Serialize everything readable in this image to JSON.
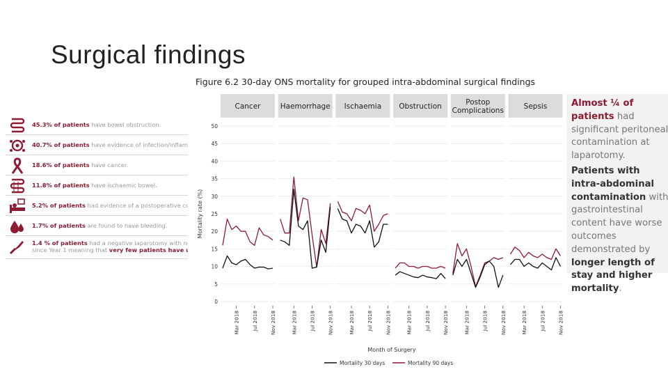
{
  "slide": {
    "title": "Surgical findings"
  },
  "figure": {
    "title": "Figure 6.2  30-day ONS mortality for grouped intra-abdominal surgical findings"
  },
  "left_list": [
    {
      "icon": "bowel-obstruction-icon",
      "bold": "45.3% of patients",
      "rest": " have bowel obstruction."
    },
    {
      "icon": "infection-icon",
      "bold": "40.7% of patients",
      "rest": " have evidence of infection/inflammatio"
    },
    {
      "icon": "cancer-ribbon-icon",
      "bold": "18.6% of patients",
      "rest": " have cancer."
    },
    {
      "icon": "ischaemic-bowel-icon",
      "bold": "11.8% of patients",
      "rest": " have ischaemic bowel."
    },
    {
      "icon": "postoperative-bed-icon",
      "bold": "5.2% of patients",
      "rest": " had evidence of a postoperative complic"
    },
    {
      "icon": "blood-drops-icon",
      "bold": "1.7% of patients",
      "rest": " are found to have bleeding."
    },
    {
      "icon": "scalpel-icon",
      "bold": "1.4 % of patients",
      "rest": " had a negative laparotomy with normal i",
      "line2_pre": "since Year 1 meaning that ",
      "line2_bold": "very few patients have unnecess"
    }
  ],
  "right_box": {
    "p1_red": "Almost ¼ of patients",
    "p1_rest": "had significant peritoneal contamination at laparotomy.",
    "p2_b1": "Patients with intra-abdominal contamination",
    "p2_mid": " with gastrointestinal content have worse outcomes demonstrated by ",
    "p2_b2": "longer length of stay and higher mortality",
    "p2_end": "."
  },
  "chart_data": {
    "type": "line",
    "title": "Figure 6.2  30-day ONS mortality for grouped intra-abdominal surgical findings",
    "xlabel": "Month of Surgery",
    "ylabel": "Mortality rate (%)",
    "ylim": [
      0,
      50
    ],
    "yticks": [
      "0",
      "5",
      "10",
      "15",
      "20",
      "25",
      "30",
      "35",
      "40",
      "45",
      "50"
    ],
    "xticks": [
      "Mar 2018",
      "Jul 2018",
      "Nov 2018"
    ],
    "x": [
      "Dec 2017",
      "Jan 2018",
      "Feb 2018",
      "Mar 2018",
      "Apr 2018",
      "May 2018",
      "Jun 2018",
      "Jul 2018",
      "Aug 2018",
      "Sep 2018",
      "Oct 2018",
      "Nov 2018"
    ],
    "legend": [
      "Mortality 30 days",
      "Mortality 90 days"
    ],
    "colors": {
      "d30": "#111111",
      "d90": "#8b1c33",
      "panel_header": "#dcdcdc",
      "grid": "#e8e8e8"
    },
    "panels": [
      {
        "name": "Cancer",
        "d30": [
          9.5,
          13,
          11,
          10.5,
          11.5,
          12,
          10.5,
          9.5,
          9.8,
          9.8,
          9.3,
          9.5
        ],
        "d90": [
          16,
          23.5,
          20.5,
          21.5,
          20,
          20,
          17,
          16,
          21,
          19,
          18.5,
          17.5
        ]
      },
      {
        "name": "Haemorrhage",
        "d30": [
          17.5,
          17,
          16,
          32,
          21.5,
          20.5,
          23,
          9.5,
          9.8,
          17.5,
          14,
          27
        ],
        "d90": [
          23.5,
          19.5,
          19.5,
          35.5,
          23,
          29.5,
          29,
          19,
          9.8,
          20.5,
          16.5,
          28
        ]
      },
      {
        "name": "Ischaemia",
        "d30": [
          26.5,
          23.5,
          23,
          19.5,
          22,
          21.5,
          19.5,
          23,
          15.5,
          17,
          22,
          22
        ],
        "d90": [
          28.5,
          25.5,
          25,
          23,
          26.5,
          26,
          25,
          27.5,
          20,
          22,
          24.5,
          25
        ]
      },
      {
        "name": "Obstruction",
        "d30": [
          7.5,
          8.5,
          8,
          7.5,
          7,
          6.8,
          7.5,
          7,
          6.8,
          6.5,
          8,
          6.5
        ],
        "d90": [
          9.5,
          11,
          11,
          10,
          10,
          9.5,
          10,
          10,
          9.5,
          9.5,
          10,
          9.5
        ]
      },
      {
        "name": "Postop\nComplications",
        "d30": [
          7.5,
          12,
          10,
          12,
          8,
          4,
          7,
          10.5,
          11.5,
          10,
          4,
          7.5
        ],
        "d90": [
          8,
          16.5,
          13,
          15,
          10,
          4.2,
          7.5,
          11,
          11.5,
          12.5,
          12,
          12.5
        ]
      },
      {
        "name": "Sepsis",
        "d30": [
          10.5,
          12,
          12,
          10,
          11,
          10,
          9.5,
          11,
          10,
          9,
          12.5,
          10
        ],
        "d90": [
          13.5,
          15.5,
          14.5,
          12.5,
          14,
          13,
          12.5,
          13.5,
          12.5,
          12,
          15,
          13
        ]
      }
    ]
  }
}
